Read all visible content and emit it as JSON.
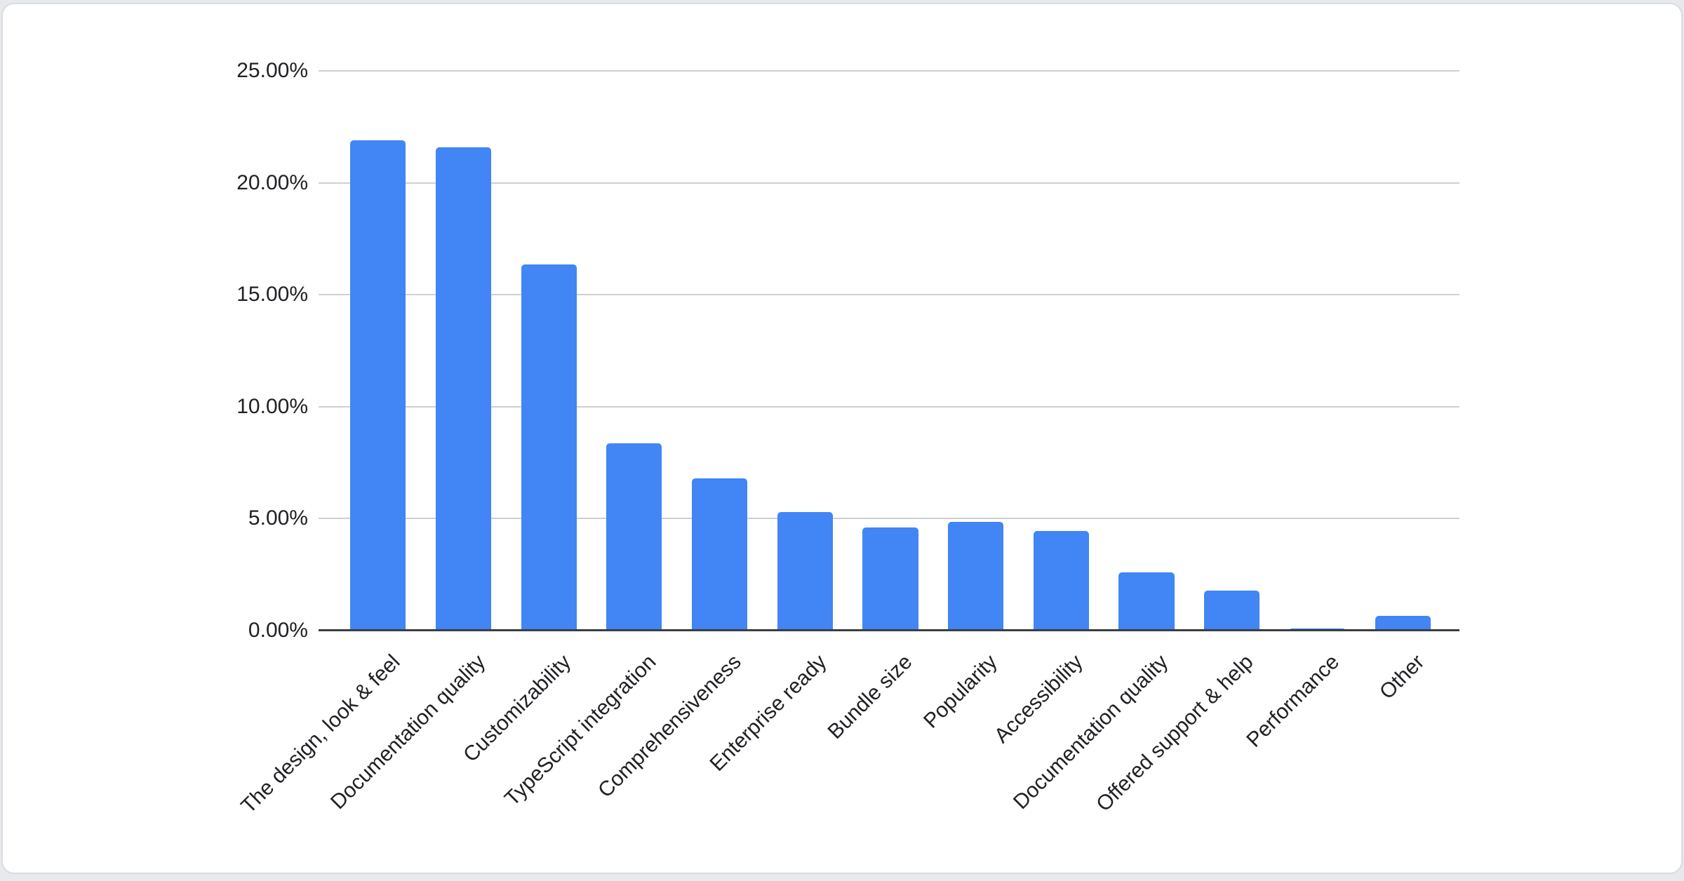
{
  "chart_data": {
    "type": "bar",
    "title": "",
    "xlabel": "",
    "ylabel": "",
    "categories": [
      "The design, look & feel",
      "Documentation quality",
      "Customizability",
      "TypeScript integration",
      "Comprehensiveness",
      "Enterprise ready",
      "Bundle size",
      "Popularity",
      "Accessibility",
      "Documentation quality",
      "Offered support & help",
      "Performance",
      "Other"
    ],
    "values": [
      21.9,
      21.6,
      16.35,
      8.35,
      6.8,
      5.3,
      4.6,
      4.85,
      4.45,
      2.6,
      1.8,
      0.1,
      0.65
    ],
    "ylim": [
      0,
      25
    ],
    "y_ticks": [
      0,
      5,
      10,
      15,
      20,
      25
    ],
    "y_tick_labels": [
      "0.00%",
      "5.00%",
      "10.00%",
      "15.00%",
      "20.00%",
      "25.00%"
    ],
    "grid": true,
    "legend_position": "none",
    "x_label_rotation_deg": 45,
    "colors": {
      "bar": "#4285f4",
      "gridline": "#cdd0d3",
      "axis_line": "#3b3e42",
      "tick_label": "#202124",
      "card_background": "#ffffff",
      "card_border": "#d9dcdf",
      "page_background": "#e7e9ec"
    }
  }
}
